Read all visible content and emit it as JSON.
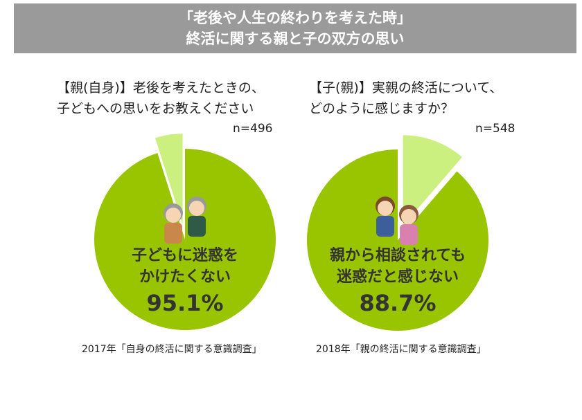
{
  "header": {
    "line1": "「老後や人生の終わりを考えた時」",
    "line2": "終活に関する親と子の双方の思い"
  },
  "colors": {
    "main": "#99c400",
    "minor": "#ccf080",
    "header_bg": "#9a9a9a"
  },
  "chart_data": [
    {
      "type": "pie",
      "question_line1": "【親(自身)】老後を考えたときの、",
      "question_line2": "子どもへの思いをお教えください",
      "n": "n=496",
      "label_line1": "子どもに迷惑を",
      "label_line2": "かけたくない",
      "pct_label": "95.1%",
      "values": [
        95.1,
        4.9
      ],
      "source": "2017年「自身の終活に関する意識調査」"
    },
    {
      "type": "pie",
      "question_line1": "【子(親)】実親の終活について、",
      "question_line2": "どのように感じますか？",
      "n": "n=548",
      "label_line1": "親から相談されても",
      "label_line2": "迷惑だと感じない",
      "pct_label": "88.7%",
      "values": [
        88.7,
        11.3
      ],
      "source": "2018年「親の終活に関する意識調査」"
    }
  ]
}
